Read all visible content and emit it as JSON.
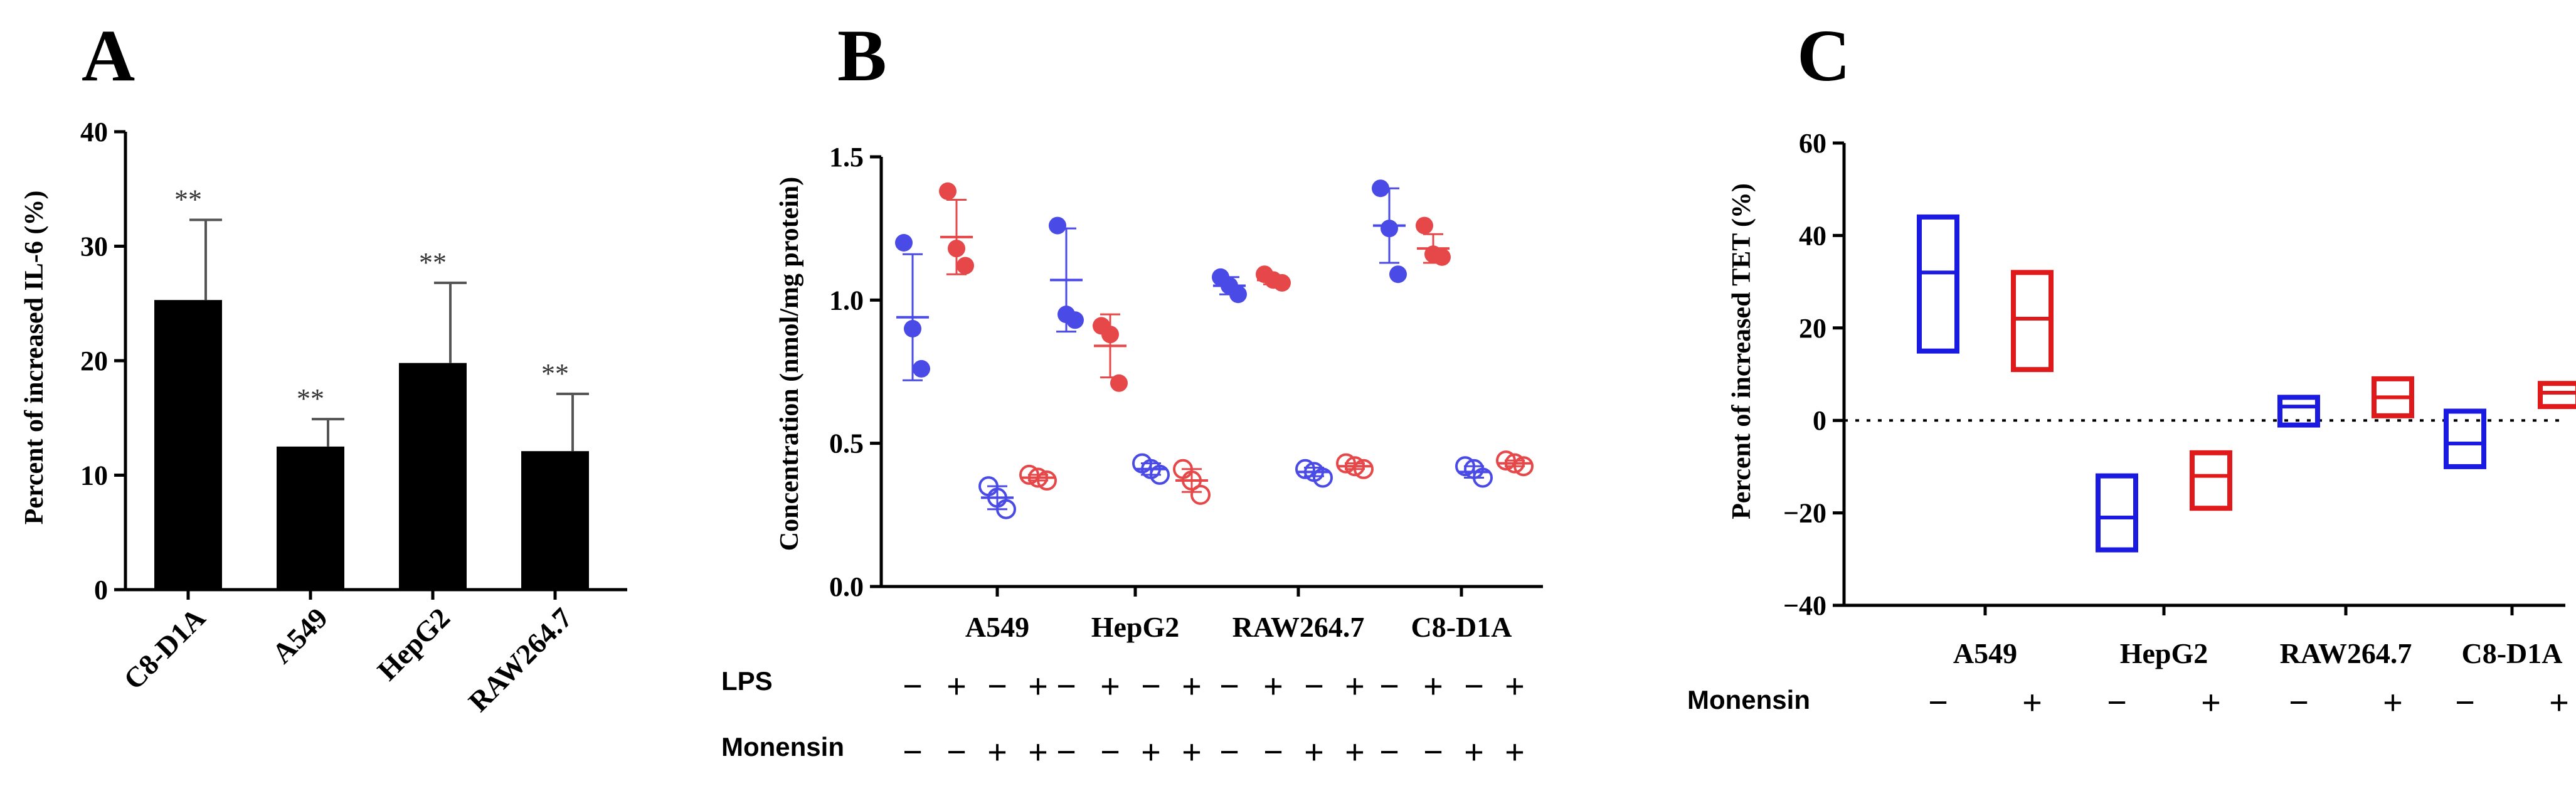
{
  "colors": {
    "bar": "#000000",
    "blue": "#4a4ae6",
    "red": "#e6484a",
    "box_blue": "#1a1ae0",
    "box_red": "#e01a1a"
  },
  "panels": {
    "A": {
      "letter": "A"
    },
    "B": {
      "letter": "B",
      "row_labels": {
        "lps": "LPS",
        "monensin": "Monensin"
      }
    },
    "C": {
      "letter": "C",
      "row_labels": {
        "monensin": "Monensin"
      }
    }
  },
  "chart_data": [
    {
      "type": "bar",
      "panel": "A",
      "ylabel": "Percent of increased IL-6 (%)",
      "ylim": [
        0,
        40
      ],
      "yticks": [
        "0",
        "10",
        "20",
        "30",
        "40"
      ],
      "categories": [
        "C8-D1A",
        "A549",
        "HepG2",
        "RAW264.7"
      ],
      "values": [
        25.3,
        12.5,
        19.8,
        12.1
      ],
      "errors": [
        7.0,
        2.4,
        7.0,
        5.0
      ],
      "annotations": [
        "**",
        "**",
        "**",
        "**"
      ]
    },
    {
      "type": "scatter",
      "panel": "B",
      "ylabel": "Concentration (nmol/mg protein)",
      "ylim": [
        0.0,
        1.5
      ],
      "yticks": [
        "0.0",
        "0.5",
        "1.0",
        "1.5"
      ],
      "categories": [
        "A549",
        "HepG2",
        "RAW264.7",
        "C8-D1A"
      ],
      "lps": [
        "−",
        "+",
        "−",
        "+"
      ],
      "monensin": [
        "−",
        "−",
        "+",
        "+"
      ],
      "groups": [
        {
          "category": "A549",
          "conditions": [
            {
              "points": [
                1.2,
                0.9,
                0.76
              ],
              "mean": 0.94,
              "sd": 0.22
            },
            {
              "points": [
                1.38,
                1.18,
                1.12
              ],
              "mean": 1.22,
              "sd": 0.13
            },
            {
              "points": [
                0.35,
                0.31,
                0.27
              ],
              "mean": 0.31,
              "sd": 0.04
            },
            {
              "points": [
                0.39,
                0.38,
                0.37
              ],
              "mean": 0.38,
              "sd": 0.01
            }
          ]
        },
        {
          "category": "HepG2",
          "conditions": [
            {
              "points": [
                1.26,
                0.95,
                0.93
              ],
              "mean": 1.07,
              "sd": 0.18
            },
            {
              "points": [
                0.91,
                0.88,
                0.71
              ],
              "mean": 0.84,
              "sd": 0.11
            },
            {
              "points": [
                0.43,
                0.41,
                0.39
              ],
              "mean": 0.41,
              "sd": 0.02
            },
            {
              "points": [
                0.41,
                0.37,
                0.32
              ],
              "mean": 0.37,
              "sd": 0.04
            }
          ]
        },
        {
          "category": "RAW264.7",
          "conditions": [
            {
              "points": [
                1.08,
                1.05,
                1.02
              ],
              "mean": 1.05,
              "sd": 0.03
            },
            {
              "points": [
                1.09,
                1.07,
                1.06
              ],
              "mean": 1.07,
              "sd": 0.015
            },
            {
              "points": [
                0.41,
                0.4,
                0.38
              ],
              "mean": 0.4,
              "sd": 0.015
            },
            {
              "points": [
                0.43,
                0.42,
                0.41
              ],
              "mean": 0.42,
              "sd": 0.01
            }
          ]
        },
        {
          "category": "C8-D1A",
          "conditions": [
            {
              "points": [
                1.39,
                1.25,
                1.09
              ],
              "mean": 1.26,
              "sd": 0.13
            },
            {
              "points": [
                1.26,
                1.16,
                1.15
              ],
              "mean": 1.18,
              "sd": 0.05
            },
            {
              "points": [
                0.42,
                0.41,
                0.38
              ],
              "mean": 0.4,
              "sd": 0.02
            },
            {
              "points": [
                0.44,
                0.43,
                0.42
              ],
              "mean": 0.43,
              "sd": 0.01
            }
          ]
        }
      ]
    },
    {
      "type": "box",
      "panel": "C",
      "ylabel": "Percent of increased TET (%)",
      "ylim": [
        -40,
        60
      ],
      "yticks": [
        "−40",
        "−20",
        "0",
        "20",
        "40",
        "60"
      ],
      "reference_line": 0,
      "categories": [
        "A549",
        "HepG2",
        "RAW264.7",
        "C8-D1A"
      ],
      "monensin": [
        "−",
        "+"
      ],
      "groups": [
        {
          "category": "A549",
          "boxes": [
            {
              "min": 15,
              "mid": 32,
              "max": 44
            },
            {
              "min": 11,
              "mid": 22,
              "max": 32
            }
          ]
        },
        {
          "category": "HepG2",
          "boxes": [
            {
              "min": -28,
              "mid": -21,
              "max": -12
            },
            {
              "min": -19,
              "mid": -12,
              "max": -7
            }
          ]
        },
        {
          "category": "RAW264.7",
          "boxes": [
            {
              "min": -1,
              "mid": 3,
              "max": 5
            },
            {
              "min": 1,
              "mid": 5,
              "max": 9
            }
          ]
        },
        {
          "category": "C8-D1A",
          "boxes": [
            {
              "min": -10,
              "mid": -5,
              "max": 2
            },
            {
              "min": 3,
              "mid": 6,
              "max": 8
            }
          ]
        }
      ]
    }
  ]
}
